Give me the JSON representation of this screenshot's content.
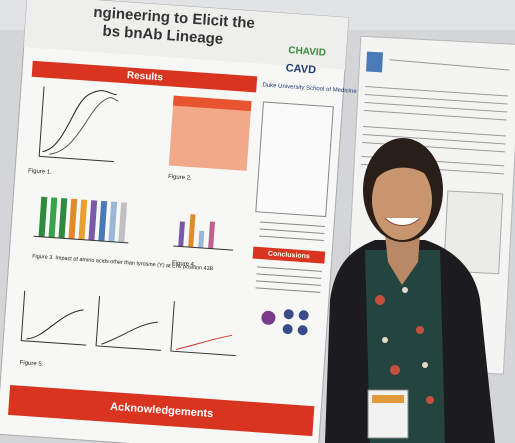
{
  "poster": {
    "title_line_1": "ngineering to Elicit the",
    "title_line_2": "bs bnAb Lineage",
    "logo_1": "CHAVID",
    "logo_2": "CAVD",
    "institution": "Duke University School of Medicine",
    "results_heading": "Results",
    "figure_1_label": "Figure 1.",
    "figure_2_label": "Figure 2.",
    "figure_3_caption": "Figure 3. Impact of amino acids other than tyrosine (Y) at Env position 43B",
    "figure_4_label": "Figure 4.",
    "figure_5_label": "Figure 5.",
    "conclusions_heading": "Conclusions",
    "acknowledgements_heading": "Acknowledgements"
  }
}
